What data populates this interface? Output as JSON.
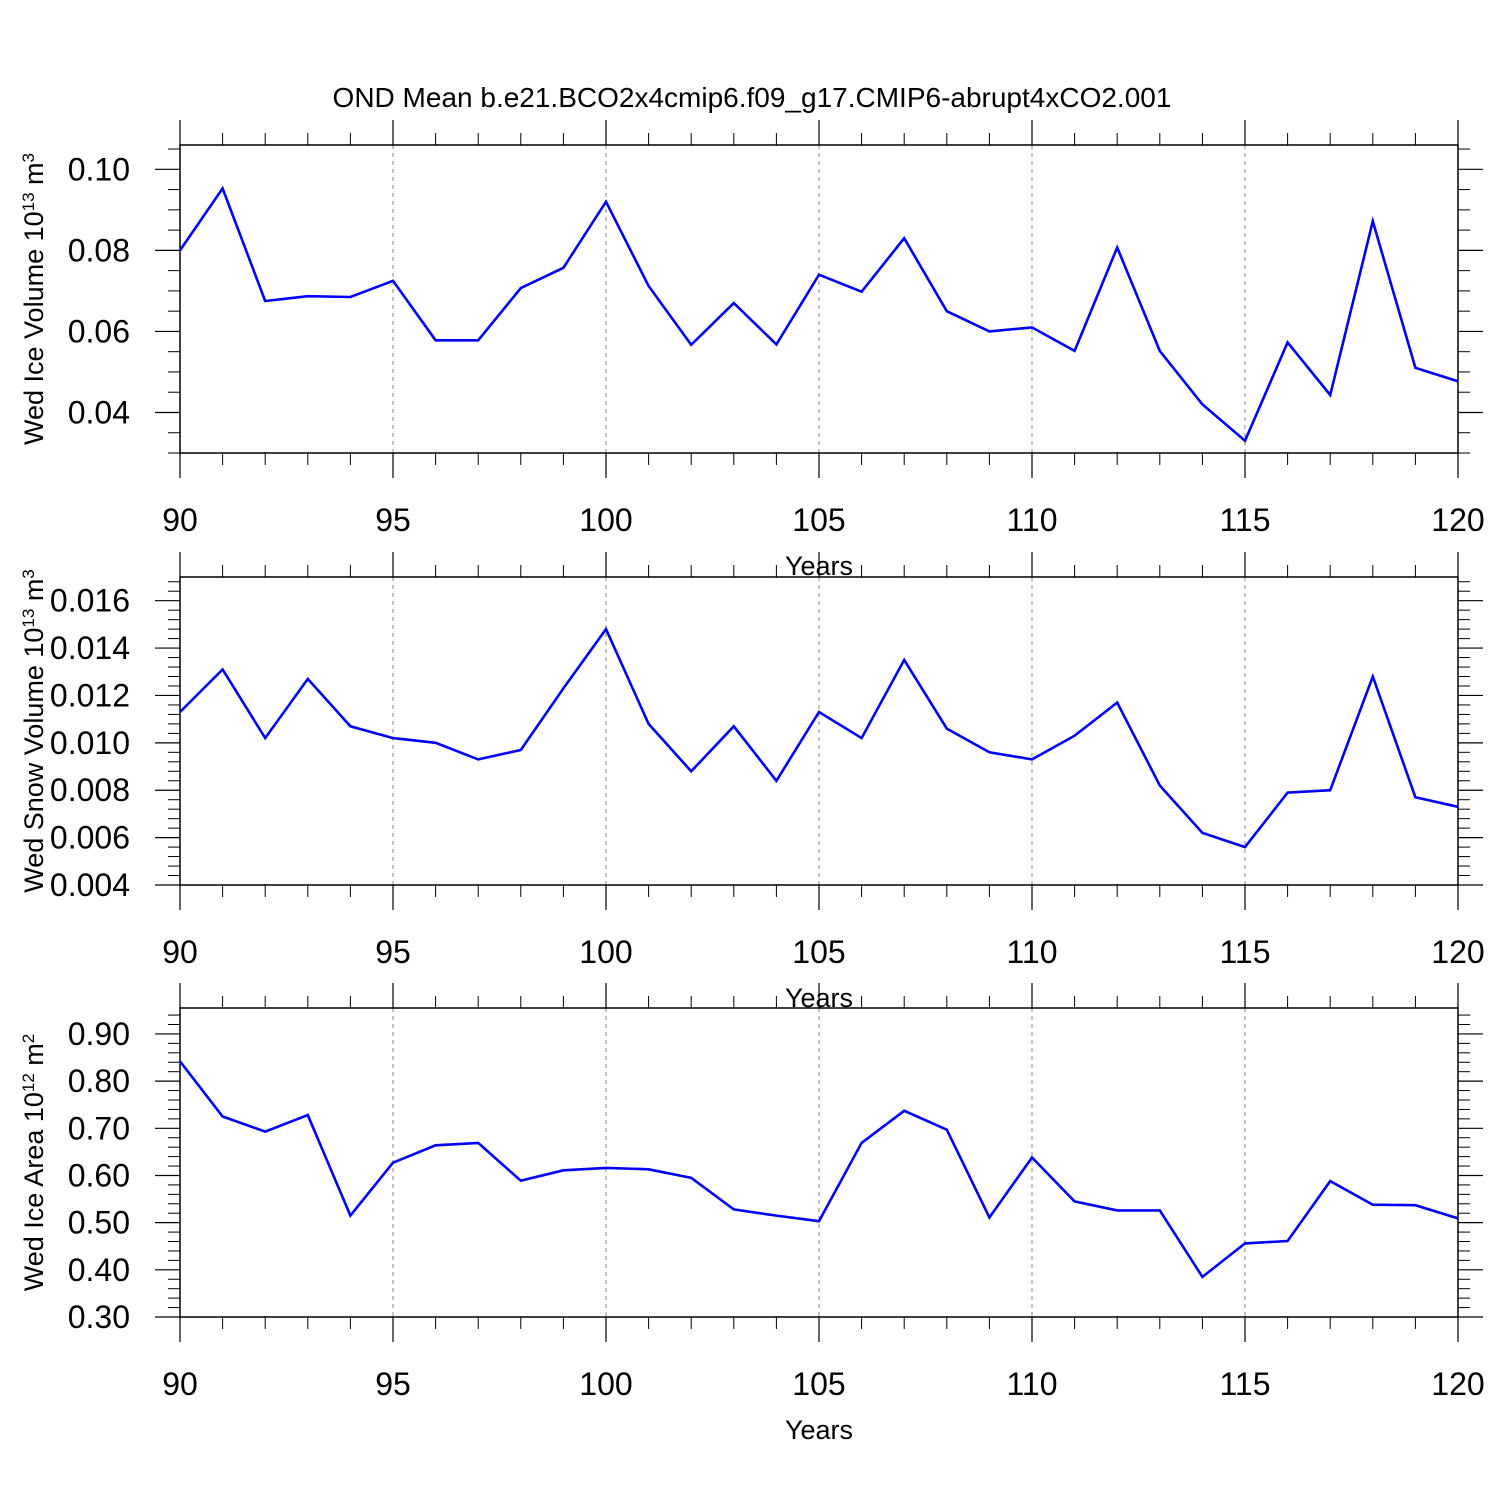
{
  "title": "OND Mean b.e21.BCO2x4cmip6.f09_g17.CMIP6-abrupt4xCO2.001",
  "colors": {
    "line": "#0000ff",
    "axis": "#000000",
    "grid": "#9a9a9a",
    "background": "#ffffff"
  },
  "chart_data": [
    {
      "type": "line",
      "xlabel": "Years",
      "ylabel": {
        "text": "Wed Ice Volume 10",
        "exp": "13",
        "unit": " m",
        "unit_exp": "3"
      },
      "xlim": [
        90,
        120
      ],
      "ylim": [
        0.03,
        0.106
      ],
      "x_ticks": [
        90,
        95,
        100,
        105,
        110,
        115,
        120
      ],
      "x_tick_labels": [
        "90",
        "95",
        "100",
        "105",
        "110",
        "115",
        "120"
      ],
      "y_ticks": [
        0.04,
        0.06,
        0.08,
        0.1
      ],
      "y_tick_labels": [
        "0.04",
        "0.06",
        "0.08",
        "0.10"
      ],
      "x_minor_step": 1,
      "y_minor_step": 0.005,
      "grid": "vertical dashed at major x ticks",
      "x": [
        90,
        91,
        92,
        93,
        94,
        95,
        96,
        97,
        98,
        99,
        100,
        101,
        102,
        103,
        104,
        105,
        106,
        107,
        108,
        109,
        110,
        111,
        112,
        113,
        114,
        115,
        116,
        117,
        118,
        119,
        120
      ],
      "series": [
        {
          "values": [
            0.08,
            0.0953,
            0.0675,
            0.0687,
            0.0685,
            0.0725,
            0.0578,
            0.0578,
            0.0707,
            0.0757,
            0.092,
            0.0712,
            0.0567,
            0.067,
            0.0568,
            0.074,
            0.0698,
            0.083,
            0.065,
            0.06,
            0.061,
            0.0552,
            0.0807,
            0.0552,
            0.042,
            0.033,
            0.0573,
            0.0443,
            0.0872,
            0.051,
            0.0477
          ]
        }
      ]
    },
    {
      "type": "line",
      "xlabel": "Years",
      "ylabel": {
        "text": "Wed Snow Volume 10",
        "exp": "13",
        "unit": " m",
        "unit_exp": "3"
      },
      "xlim": [
        90,
        120
      ],
      "ylim": [
        0.004,
        0.017
      ],
      "x_ticks": [
        90,
        95,
        100,
        105,
        110,
        115,
        120
      ],
      "x_tick_labels": [
        "90",
        "95",
        "100",
        "105",
        "110",
        "115",
        "120"
      ],
      "y_ticks": [
        0.004,
        0.006,
        0.008,
        0.01,
        0.012,
        0.014,
        0.016
      ],
      "y_tick_labels": [
        "0.004",
        "0.006",
        "0.008",
        "0.010",
        "0.012",
        "0.014",
        "0.016"
      ],
      "x_minor_step": 1,
      "y_minor_step": 0.0004,
      "grid": "vertical dashed at major x ticks",
      "x": [
        90,
        91,
        92,
        93,
        94,
        95,
        96,
        97,
        98,
        99,
        100,
        101,
        102,
        103,
        104,
        105,
        106,
        107,
        108,
        109,
        110,
        111,
        112,
        113,
        114,
        115,
        116,
        117,
        118,
        119,
        120
      ],
      "series": [
        {
          "values": [
            0.0113,
            0.0131,
            0.0102,
            0.0127,
            0.0107,
            0.0102,
            0.01,
            0.0093,
            0.0097,
            0.0123,
            0.0148,
            0.0108,
            0.0088,
            0.0107,
            0.0084,
            0.0113,
            0.0102,
            0.0135,
            0.0106,
            0.0096,
            0.0093,
            0.0103,
            0.0117,
            0.0082,
            0.0062,
            0.0056,
            0.0079,
            0.008,
            0.0128,
            0.0077,
            0.0073
          ]
        }
      ]
    },
    {
      "type": "line",
      "xlabel": "Years",
      "ylabel": {
        "text": "Wed Ice Area 10",
        "exp": "12",
        "unit": " m",
        "unit_exp": "2"
      },
      "xlim": [
        90,
        120
      ],
      "ylim": [
        0.3,
        0.955
      ],
      "x_ticks": [
        90,
        95,
        100,
        105,
        110,
        115,
        120
      ],
      "x_tick_labels": [
        "90",
        "95",
        "100",
        "105",
        "110",
        "115",
        "120"
      ],
      "y_ticks": [
        0.3,
        0.4,
        0.5,
        0.6,
        0.7,
        0.8,
        0.9
      ],
      "y_tick_labels": [
        "0.30",
        "0.40",
        "0.50",
        "0.60",
        "0.70",
        "0.80",
        "0.90"
      ],
      "x_minor_step": 1,
      "y_minor_step": 0.02,
      "grid": "vertical dashed at major x ticks",
      "x": [
        90,
        91,
        92,
        93,
        94,
        95,
        96,
        97,
        98,
        99,
        100,
        101,
        102,
        103,
        104,
        105,
        106,
        107,
        108,
        109,
        110,
        111,
        112,
        113,
        114,
        115,
        116,
        117,
        118,
        119,
        120
      ],
      "series": [
        {
          "values": [
            0.842,
            0.725,
            0.693,
            0.728,
            0.515,
            0.627,
            0.664,
            0.669,
            0.589,
            0.611,
            0.616,
            0.613,
            0.595,
            0.528,
            0.515,
            0.503,
            0.669,
            0.737,
            0.697,
            0.511,
            0.638,
            0.545,
            0.526,
            0.526,
            0.385,
            0.456,
            0.461,
            0.588,
            0.538,
            0.537,
            0.509
          ]
        }
      ]
    }
  ]
}
